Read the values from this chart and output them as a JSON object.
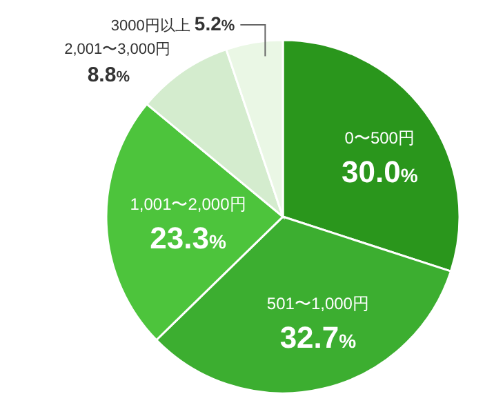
{
  "chart_data": {
    "type": "pie",
    "categories": [
      "0〜500円",
      "501〜1,000円",
      "1,001〜2,000円",
      "2,001〜3,000円",
      "3000円以上"
    ],
    "values": [
      30.0,
      32.7,
      23.3,
      8.8,
      5.2
    ],
    "value_labels": [
      "30.0%",
      "32.7%",
      "23.3%",
      "8.8%",
      "5.2%"
    ],
    "colors": [
      "#2a961c",
      "#3cae30",
      "#4dc43c",
      "#d4ecce",
      "#eaf7e5"
    ],
    "legend": false
  }
}
